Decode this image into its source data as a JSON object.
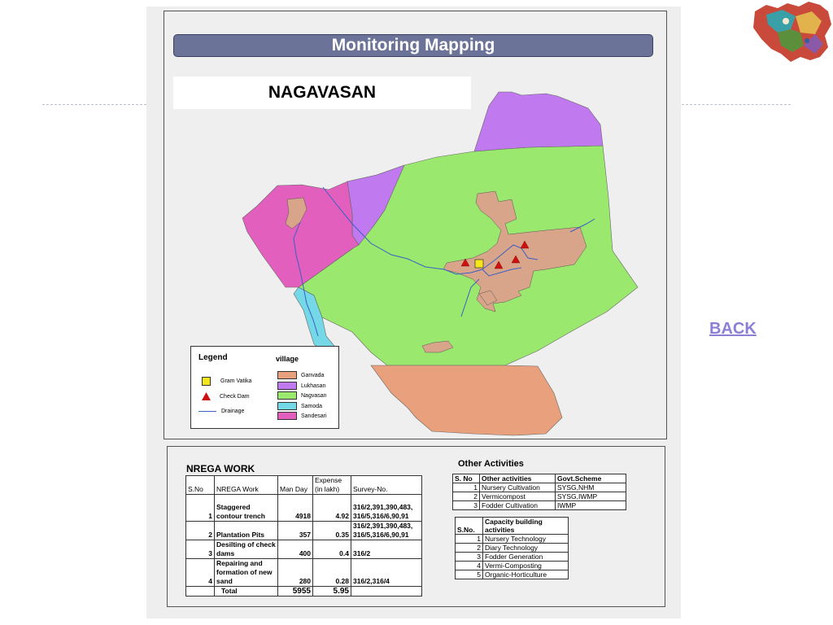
{
  "header": {
    "title": "Monitoring Mapping",
    "village_name": "NAGAVASAN"
  },
  "nav": {
    "back_label": "BACK"
  },
  "map": {
    "legend": {
      "title": "Legend",
      "village_title": "village",
      "symbols": [
        {
          "label": "Gram Vatika",
          "icon": "yellow-square-icon",
          "color": "#f5e51b"
        },
        {
          "label": "Check Dam",
          "icon": "red-triangle-icon",
          "color": "#cc1111"
        },
        {
          "label": "Drainage",
          "icon": "blue-line-icon",
          "color": "#3d5fc4"
        }
      ],
      "villages": [
        {
          "label": "Ganvada",
          "color": "#e9a07c"
        },
        {
          "label": "Lukhasan",
          "color": "#c079ee"
        },
        {
          "label": "Nagvasan",
          "color": "#9ae86e"
        },
        {
          "label": "Samoda",
          "color": "#74d8e6"
        },
        {
          "label": "Sandesari",
          "color": "#e35fbd"
        }
      ]
    }
  },
  "nrega": {
    "title": "NREGA WORK",
    "columns": [
      "S.No",
      "NREGA Work",
      "Man Day",
      "Expense (in lakh)",
      "Survey-No."
    ],
    "rows": [
      {
        "sno": "1",
        "work": "Staggered contour trench",
        "man_day": "4918",
        "expense": "4.92",
        "survey": "316/2,391,390,483, 316/5,316/6,90,91"
      },
      {
        "sno": "2",
        "work": "Plantation Pits",
        "man_day": "357",
        "expense": "0.35",
        "survey": "316/2,391,390,483, 316/5,316/6,90,91"
      },
      {
        "sno": "3",
        "work": "Desilting of check dams",
        "man_day": "400",
        "expense": "0.4",
        "survey": "316/2"
      },
      {
        "sno": "4",
        "work": "Repairing and formation of new sand",
        "man_day": "280",
        "expense": "0.28",
        "survey": "316/2,316/4"
      }
    ],
    "total": {
      "label": "Total",
      "man_day": "5955",
      "expense": "5.95"
    }
  },
  "other_activities": {
    "title": "Other Activities",
    "columns": [
      "S. No",
      "Other activities",
      "Govt.Scheme"
    ],
    "rows": [
      {
        "sno": "1",
        "activity": "Nursery Cultivation",
        "scheme": "SYSG,NHM"
      },
      {
        "sno": "2",
        "activity": "Vermicompost",
        "scheme": "SYSG,IWMP"
      },
      {
        "sno": "3",
        "activity": "Fodder Cultivation",
        "scheme": "IWMP"
      }
    ]
  },
  "capacity": {
    "columns": [
      "S.No.",
      "Capacity building activities"
    ],
    "rows": [
      {
        "sno": "1",
        "activity": "Nursery Technology"
      },
      {
        "sno": "2",
        "activity": "Diary Technology"
      },
      {
        "sno": "3",
        "activity": "Fodder Generation"
      },
      {
        "sno": "4",
        "activity": "Vermi-Composting"
      },
      {
        "sno": "5",
        "activity": "Organic-Horticulture"
      }
    ]
  }
}
